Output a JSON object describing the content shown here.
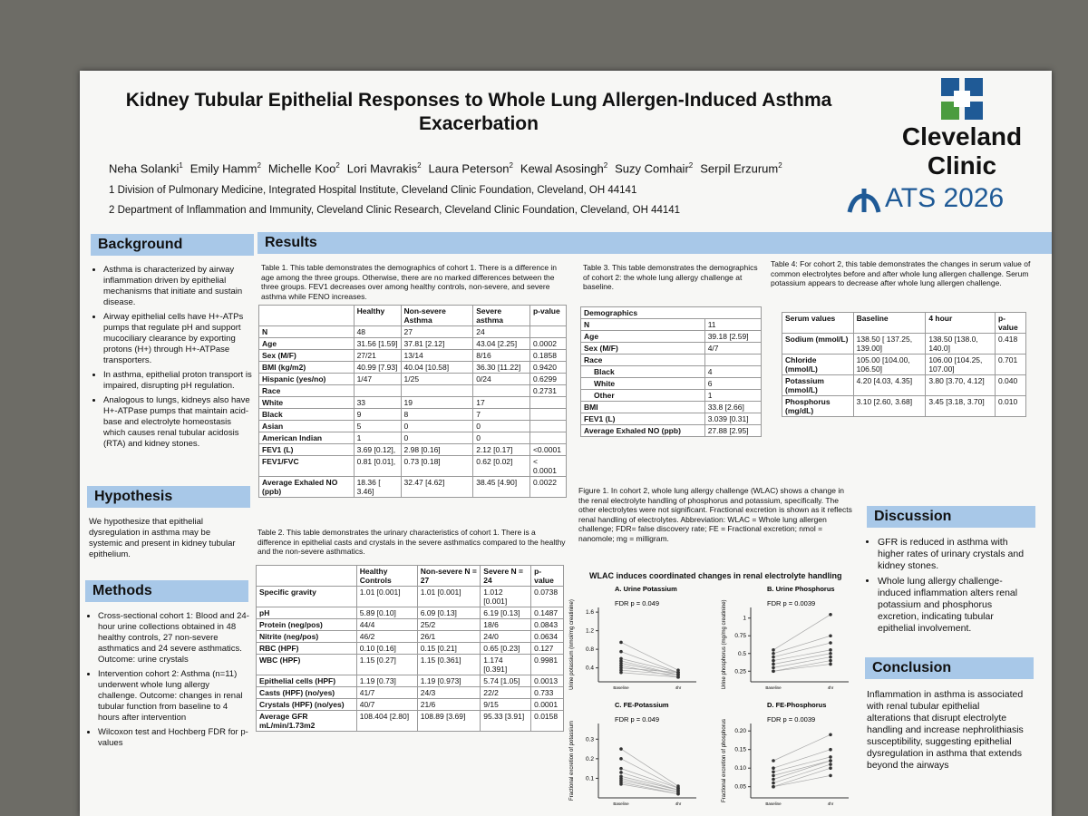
{
  "header": {
    "title": "Kidney Tubular Epithelial Responses to Whole Lung Allergen-Induced Asthma Exacerbation",
    "authors": [
      {
        "name": "Neha Solanki",
        "sup": "1"
      },
      {
        "name": "Emily Hamm",
        "sup": "2"
      },
      {
        "name": "Michelle Koo",
        "sup": "2"
      },
      {
        "name": "Lori Mavrakis",
        "sup": "2"
      },
      {
        "name": "Laura Peterson",
        "sup": "2"
      },
      {
        "name": "Kewal Asosingh",
        "sup": "2"
      },
      {
        "name": "Suzy Comhair",
        "sup": "2"
      },
      {
        "name": "Serpil Erzurum",
        "sup": "2"
      }
    ],
    "affiliations": [
      "1 Division of Pulmonary Medicine, Integrated Hospital Institute, Cleveland Clinic Foundation, Cleveland, OH 44141",
      "2 Department of Inflammation and Immunity, Cleveland Clinic Research, Cleveland Clinic Foundation, Cleveland, OH 44141"
    ],
    "logo": [
      "Cleveland",
      "Clinic"
    ],
    "conference": "ATS 2026"
  },
  "background": {
    "heading": "Background",
    "bullets": [
      "Asthma is characterized by airway inflammation driven by epithelial mechanisms that initiate and sustain disease.",
      "Airway epithelial cells have H+-ATPs pumps that regulate pH and support mucociliary clearance by exporting protons (H+) through H+-ATPase transporters.",
      "In asthma, epithelial proton transport is impaired, disrupting pH regulation.",
      "Analogous to lungs, kidneys also have H+-ATPase pumps that maintain acid-base and electrolyte homeostasis which causes renal tubular acidosis (RTA) and kidney stones."
    ]
  },
  "hypothesis": {
    "heading": "Hypothesis",
    "text": "We hypothesize that epithelial dysregulation in asthma may be systemic and present in kidney tubular epithelium."
  },
  "methods": {
    "heading": "Methods",
    "bullets": [
      "Cross-sectional cohort 1: Blood and 24-hour urine collections obtained in 48 healthy controls, 27 non-severe asthmatics and 24 severe asthmatics. Outcome: urine crystals",
      "Intervention cohort 2: Asthma (n=11) underwent whole lung allergy challenge. Outcome: changes in renal tubular function from baseline to 4 hours after intervention",
      "Wilcoxon test and Hochberg FDR for p-values"
    ]
  },
  "results": {
    "heading": "Results"
  },
  "table1": {
    "caption": "Table 1. This table demonstrates the demographics of cohort 1. There is a difference in age among the three groups. Otherwise, there are no marked differences between the three groups. FEV1 decreases over among healthy controls, non-severe, and severe asthma while FENO increases.",
    "header": [
      null,
      "Healthy",
      "Non-severe Asthma",
      "Severe asthma",
      "p-value"
    ],
    "rows": [
      [
        "N",
        "48",
        "27",
        "24",
        null
      ],
      [
        "Age",
        "31.56 [1.59]",
        "37.81 [2.12]",
        "43.04 [2.25]",
        "0.0002"
      ],
      [
        "Sex (M/F)",
        "27/21",
        "13/14",
        "8/16",
        "0.1858"
      ],
      [
        "BMI (kg/m2)",
        "40.99 [7.93]",
        "40.04 [10.58]",
        "36.30 [11.22]",
        "0.9420"
      ],
      [
        "Hispanic (yes/no)",
        "1/47",
        "1/25",
        "0/24",
        "0.6299"
      ],
      [
        "Race",
        null,
        null,
        null,
        "0.2731"
      ],
      [
        "White",
        "33",
        "19",
        "17",
        null
      ],
      [
        "Black",
        "9",
        "8",
        "7",
        null
      ],
      [
        "Asian",
        "5",
        "0",
        "0",
        null
      ],
      [
        "American Indian",
        "1",
        "0",
        "0",
        null
      ],
      [
        "FEV1 (L)",
        "3.69 [0.12],",
        "2.98 [0.16]",
        "2.12 [0.17]",
        "<0.0001"
      ],
      [
        "FEV1/FVC",
        "0.81 [0.01],",
        "0.73 [0.18]",
        "0.62 [0.02]",
        "< 0.0001"
      ],
      [
        "Average Exhaled NO (ppb)",
        "18.36 [ 3.46]",
        "32.47 [4.62]",
        "38.45 [4.90]",
        "0.0022"
      ]
    ]
  },
  "table2": {
    "caption": "Table 2. This table demonstrates the urinary characteristics of cohort 1. There is a difference in epithelial casts and crystals in the severe asthmatics compared to the healthy and the non-severe asthmatics.",
    "header": [
      null,
      "Healthy Controls",
      "Non-severe N = 27",
      "Severe N = 24",
      "p-value"
    ],
    "rows": [
      [
        "Specific gravity",
        "1.01 [0.001]",
        "1.01 [0.001]",
        "1.012 [0.001]",
        "0.0738"
      ],
      [
        "pH",
        "5.89 [0.10]",
        "6.09 [0.13]",
        "6.19 [0.13]",
        "0.1487"
      ],
      [
        "Protein (neg/pos)",
        "44/4",
        "25/2",
        "18/6",
        "0.0843"
      ],
      [
        "Nitrite (neg/pos)",
        "46/2",
        "26/1",
        "24/0",
        "0.0634"
      ],
      [
        "RBC (HPF)",
        "0.10 [0.16]",
        "0.15 [0.21]",
        "0.65 [0.23]",
        "0.127"
      ],
      [
        "WBC (HPF)",
        "1.15 [0.27]",
        "1.15 [0.361]",
        "1.174 [0.391]",
        "0.9981"
      ],
      [
        "Epithelial cells (HPF)",
        "1.19 [0.73]",
        "1.19 [0.973]",
        "5.74 [1.05]",
        "0.0013"
      ],
      [
        "Casts (HPF) (no/yes)",
        "41/7",
        "24/3",
        "22/2",
        "0.733"
      ],
      [
        "Crystals (HPF) (no/yes)",
        "40/7",
        "21/6",
        "9/15",
        "0.0001"
      ],
      [
        "Average GFR mL/min/1.73m2",
        "108.404 [2.80]",
        "108.89 [3.69]",
        "95.33 [3.91]",
        "0.0158"
      ]
    ]
  },
  "table3": {
    "caption": "Table 3. This table demonstrates the demographics of cohort 2: the whole lung allergy challenge at baseline.",
    "header": [
      "Demographics"
    ],
    "rows": [
      [
        "N",
        "11"
      ],
      [
        "Age",
        "39.18 [2.59]"
      ],
      [
        "Sex (M/F)",
        "4/7"
      ],
      [
        "Race",
        null
      ],
      [
        "Black",
        "4"
      ],
      [
        "White",
        "6"
      ],
      [
        "Other",
        "1"
      ],
      [
        "BMI",
        "33.8 [2.66]"
      ],
      [
        "FEV1 (L)",
        "3.039 [0.31]"
      ],
      [
        "Average Exhaled NO (ppb)",
        "27.88 [2.95]"
      ]
    ]
  },
  "table4": {
    "caption": "Table 4: For cohort 2, this table demonstrates the changes in serum value of common electrolytes before and after whole lung allergen challenge. Serum potassium appears to decrease after whole lung allergen challenge.",
    "header": [
      "Serum values",
      "Baseline",
      "4 hour",
      "p-value"
    ],
    "rows": [
      [
        "Sodium (mmol/L)",
        "138.50 [ 137.25, 139.00]",
        "138.50 [138.0, 140.0]",
        "0.418"
      ],
      [
        "Chloride (mmol/L)",
        "105.00 [104.00, 106.50]",
        "106.00 [104.25, 107.00]",
        "0.701"
      ],
      [
        "Potassium (mmol/L)",
        "4.20 [4.03, 4.35]",
        "3.80 [3.70, 4.12]",
        "0.040"
      ],
      [
        "Phosphorus (mg/dL)",
        "3.10 [2.60, 3.68]",
        "3.45 [3.18, 3.70]",
        "0.010"
      ]
    ]
  },
  "figure": {
    "caption": "Figure 1. In cohort 2, whole lung allergy challenge (WLAC) shows a change in the renal electrolyte handling of phosphorus and potassium, specifically. The other electrolytes were not significant. Fractional excretion is shown as it reflects renal handling of electrolytes. Abbreviation: WLAC = Whole lung allergen challenge; FDR= false discovery rate; FE = Fractional excretion; nmol = nanomole; mg = milligram.",
    "title": "WLAC induces coordinated changes in renal electrolyte handling",
    "panels": [
      {
        "title": "A. Urine Potassium",
        "annotation": "FDR p = 0.049",
        "ylabel": "Urine potassium (nmol/mg creatinine)",
        "categories": [
          "Baseline",
          "4hr"
        ],
        "ylim": [
          0.1,
          1.7
        ],
        "yticks": [
          0.4,
          0.8,
          1.2,
          1.6
        ],
        "baseline": [
          0.95,
          0.75,
          0.6,
          0.55,
          0.5,
          0.45,
          0.4,
          0.35,
          0.3
        ],
        "after": [
          0.35,
          0.3,
          0.3,
          0.25,
          0.25,
          0.2,
          0.3,
          0.25,
          0.2
        ]
      },
      {
        "title": "B. Urine Phosphorus",
        "annotation": "FDR p = 0.0039",
        "ylabel": "Urine phosphorus (mg/mg creatinine)",
        "categories": [
          "Baseline",
          "4hr"
        ],
        "ylim": [
          0.1,
          1.15
        ],
        "yticks": [
          0.25,
          0.5,
          0.75,
          1
        ],
        "baseline": [
          0.55,
          0.5,
          0.45,
          0.4,
          0.35,
          0.3,
          0.25,
          0.25
        ],
        "after": [
          1.05,
          0.75,
          0.65,
          0.55,
          0.5,
          0.45,
          0.4,
          0.35
        ]
      },
      {
        "title": "C. FE-Potassium",
        "annotation": "FDR p = 0.049",
        "ylabel": "Fractional excretion of potassium",
        "categories": [
          "Baseline",
          "4hr"
        ],
        "ylim": [
          0,
          0.38
        ],
        "yticks": [
          0.1,
          0.2,
          0.3
        ],
        "baseline": [
          0.25,
          0.2,
          0.15,
          0.13,
          0.11,
          0.1,
          0.09,
          0.08,
          0.07
        ],
        "after": [
          0.06,
          0.05,
          0.05,
          0.04,
          0.04,
          0.03,
          0.03,
          0.02,
          0.02
        ]
      },
      {
        "title": "D. FE-Phosphorus",
        "annotation": "FDR p = 0.0039",
        "ylabel": "Fractional excretion of phosphorus",
        "categories": [
          "Baseline",
          "4hr"
        ],
        "ylim": [
          0.02,
          0.22
        ],
        "yticks": [
          0.05,
          {
            "value": 0.1,
            "label": "0.10"
          },
          0.15,
          {
            "value": 0.2,
            "label": "0.20"
          }
        ],
        "baseline": [
          0.12,
          0.1,
          0.09,
          0.08,
          0.07,
          0.06,
          0.05,
          0.05
        ],
        "after": [
          0.19,
          0.15,
          0.13,
          0.12,
          0.12,
          0.11,
          0.1,
          0.08
        ]
      }
    ]
  },
  "discussion": {
    "heading": "Discussion",
    "bullets": [
      "GFR is reduced in asthma with higher rates of urinary crystals and kidney stones.",
      "Whole lung allergy challenge-induced inflammation alters renal potassium and phosphorus excretion, indicating tubular epithelial involvement."
    ]
  },
  "conclusion": {
    "heading": "Conclusion",
    "text": "Inflammation in asthma is associated with renal tubular epithelial alterations that disrupt electrolyte handling and increase nephrolithiasis susceptibility, suggesting epithelial dysregulation in asthma that extends beyond the airways"
  }
}
